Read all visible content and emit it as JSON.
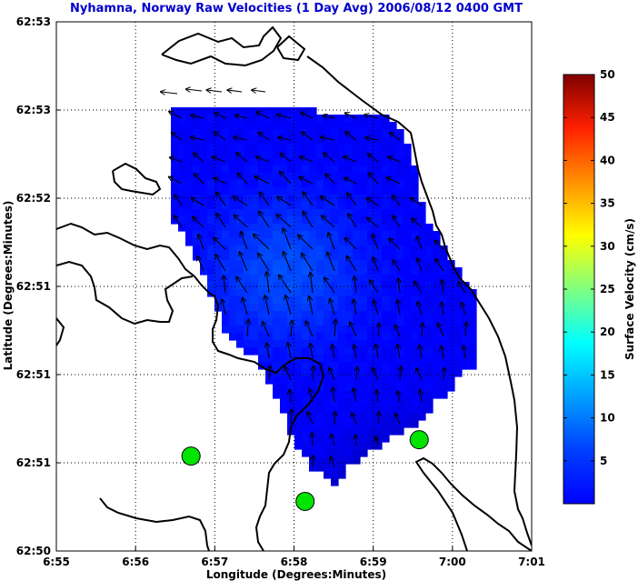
{
  "chart_data": {
    "type": "heatmap",
    "title": "Nyhamna, Norway Raw Velocities (1 Day Avg) 2006/08/12 0400 GMT",
    "xlabel": "Longitude (Degrees:Minutes)",
    "ylabel": "Latitude (Degrees:Minutes)",
    "x_ticks": [
      "6:55",
      "6:56",
      "6:57",
      "6:58",
      "6:59",
      "7:00",
      "7:01"
    ],
    "y_ticks": [
      "62:50",
      "62:51",
      "62:51",
      "62:51",
      "62:52",
      "62:53",
      "62:53"
    ],
    "grid": true,
    "colorbar": {
      "label": "Surface Velocity (cm/s)",
      "min": 0,
      "max": 50,
      "ticks": [
        "5",
        "10",
        "15",
        "20",
        "25",
        "30",
        "35",
        "40",
        "45",
        "50"
      ],
      "colormap": "jet"
    },
    "stations": [
      {
        "lon": 6.945,
        "lat": 62.8438
      },
      {
        "lon": 6.969,
        "lat": 62.8388
      },
      {
        "lon": 6.993,
        "lat": 62.8456
      }
    ],
    "speed_field": {
      "base_speed_cms": 6,
      "maxima": [
        {
          "lon": 6.965,
          "lat": 62.8642,
          "speed_cms": 10
        }
      ],
      "minima": [
        {
          "lon": 6.98,
          "lat": 62.8375,
          "speed_cms": 3
        },
        {
          "lon": 6.994,
          "lat": 62.8425,
          "speed_cms": 2
        }
      ]
    },
    "vectors_summary": "1-day averaged surface current vectors over the coverage area; strongest (~10 cm/s) flow directed west-northwest in the northern half"
  }
}
